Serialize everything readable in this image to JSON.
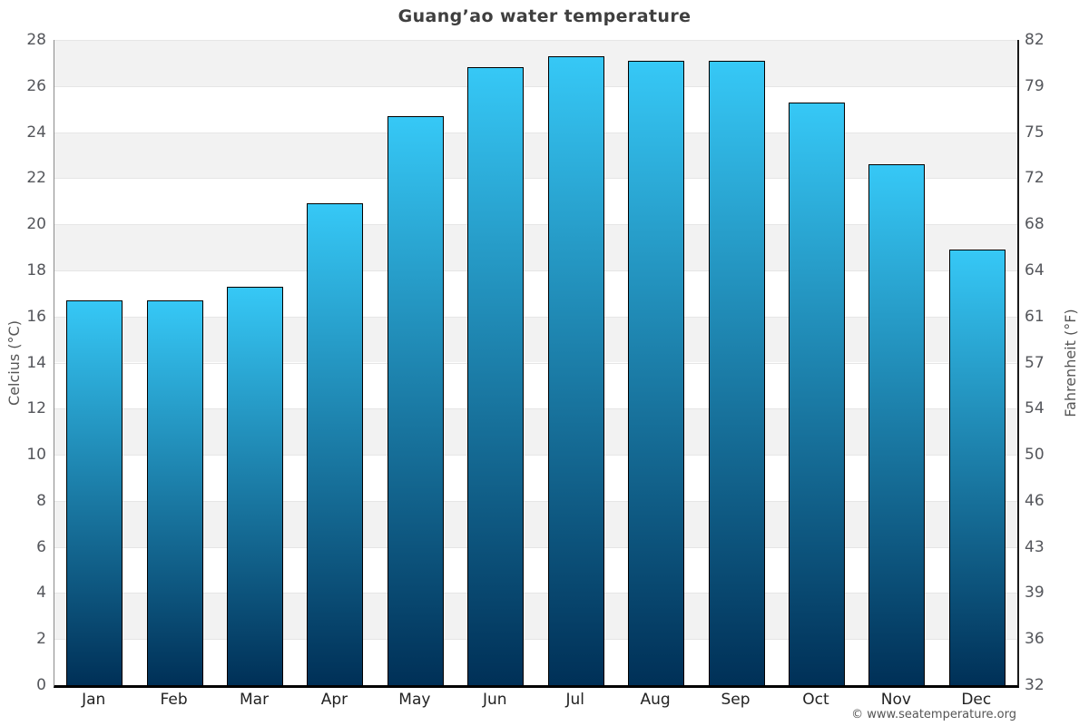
{
  "title": "Guang’ao water temperature",
  "footer": "© www.seatemperature.org",
  "chart_data": {
    "type": "bar",
    "title": "Guang’ao water temperature",
    "categories": [
      "Jan",
      "Feb",
      "Mar",
      "Apr",
      "May",
      "Jun",
      "Jul",
      "Aug",
      "Sep",
      "Oct",
      "Nov",
      "Dec"
    ],
    "values": [
      16.7,
      16.7,
      17.3,
      20.9,
      24.7,
      26.8,
      27.3,
      27.1,
      27.1,
      25.3,
      22.6,
      18.9
    ],
    "unit": "°C",
    "ylabel_left": "Celcius (°C)",
    "ylabel_right": "Fahrenheit (°F)",
    "ylim": [
      0,
      28
    ],
    "celsius_ticks": [
      28,
      26,
      24,
      22,
      20,
      18,
      16,
      14,
      12,
      10,
      8,
      6,
      4,
      2,
      0
    ],
    "fahrenheit_ticks": [
      "82",
      "79",
      "75",
      "72",
      "68",
      "64",
      "61",
      "57",
      "54",
      "50",
      "46",
      "43",
      "39",
      "36",
      "32"
    ],
    "grid": "horizontal alternating bands every 2°C, gray band at top (26–28)",
    "legend": "none",
    "colors": {
      "bar_gradient_top": "#36c8f6",
      "bar_gradient_bottom": "#003057",
      "bar_border": "#000000",
      "band_gray": "#f2f2f2",
      "band_white": "#ffffff",
      "gridline": "#e6e6e6",
      "title_text": "#3f3f3f",
      "tick_text": "#54565b",
      "month_text": "#222222",
      "axis_title_text": "#555555",
      "footer_text": "#555555"
    }
  }
}
